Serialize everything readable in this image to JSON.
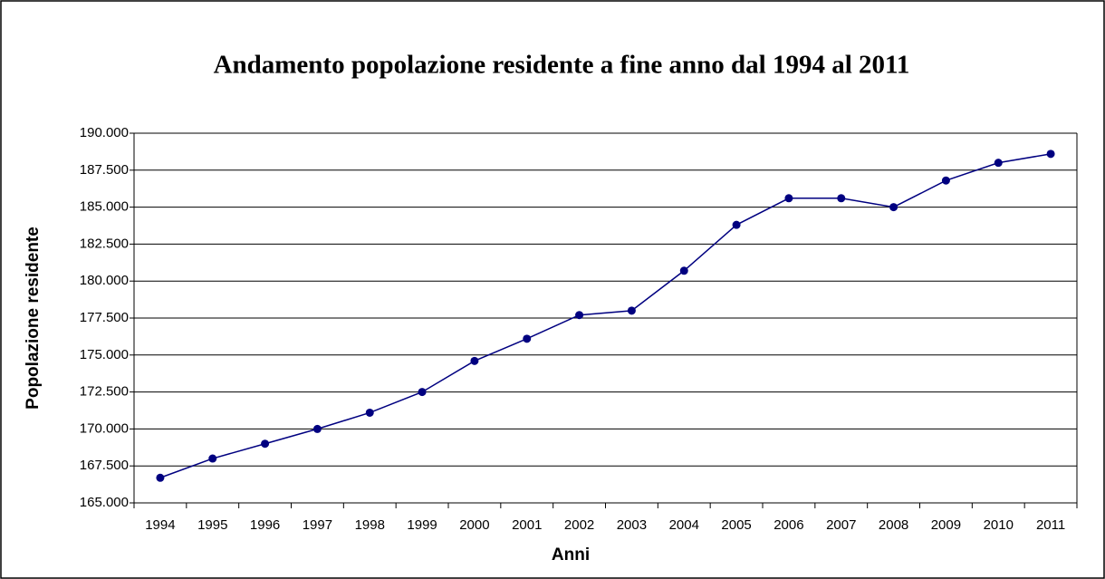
{
  "chart_data": {
    "type": "line",
    "title": "Andamento popolazione residente a fine anno dal 1994 al 2011",
    "x_label": "Anni",
    "y_label": "Popolazione residente",
    "categories": [
      "1994",
      "1995",
      "1996",
      "1997",
      "1998",
      "1999",
      "2000",
      "2001",
      "2002",
      "2003",
      "2004",
      "2005",
      "2006",
      "2007",
      "2008",
      "2009",
      "2010",
      "2011"
    ],
    "series": [
      {
        "name": "Popolazione residente",
        "color": "#000080",
        "values": [
          166700,
          168000,
          169000,
          170000,
          171100,
          172500,
          174600,
          176100,
          177700,
          178000,
          180700,
          183800,
          185600,
          185600,
          185000,
          186800,
          188000,
          188600
        ]
      }
    ],
    "ylim": [
      165000,
      190000
    ],
    "yticks": [
      {
        "value": 165000,
        "label": "165.000"
      },
      {
        "value": 167500,
        "label": "167.500"
      },
      {
        "value": 170000,
        "label": "170.000"
      },
      {
        "value": 172500,
        "label": "172.500"
      },
      {
        "value": 175000,
        "label": "175.000"
      },
      {
        "value": 177500,
        "label": "177.500"
      },
      {
        "value": 180000,
        "label": "180.000"
      },
      {
        "value": 182500,
        "label": "182.500"
      },
      {
        "value": 185000,
        "label": "185.000"
      },
      {
        "value": 187500,
        "label": "187.500"
      },
      {
        "value": 190000,
        "label": "190.000"
      }
    ],
    "grid": true
  }
}
